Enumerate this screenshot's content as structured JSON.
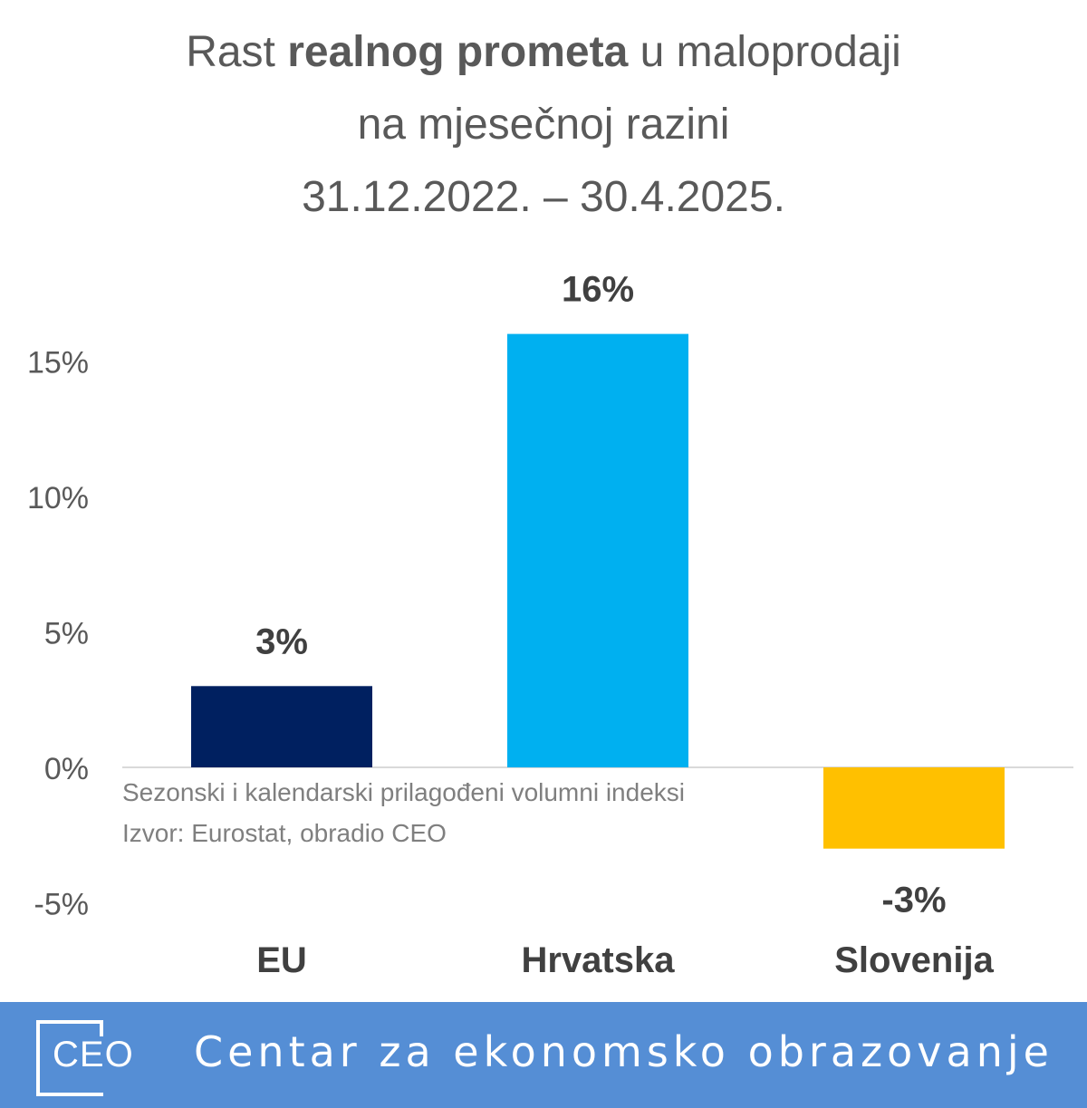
{
  "title": {
    "part1": "Rast ",
    "bold": "realnog prometa",
    "part2": " u maloprodaji",
    "line2": "na mjesečnoj razini",
    "line3": "31.12.2022. – 30.4.2025."
  },
  "notes": {
    "line1": "Sezonski i kalendarski prilagođeni volumni indeksi",
    "line2": "Izvor: Eurostat, obradio CEO"
  },
  "chart_data": {
    "type": "bar",
    "categories": [
      "EU",
      "Hrvatska",
      "Slovenija"
    ],
    "values": [
      3,
      16,
      -3
    ],
    "data_labels": [
      "3%",
      "16%",
      "-3%"
    ],
    "colors": [
      "#002060",
      "#00b0f0",
      "#ffc000"
    ],
    "ylim": [
      -5,
      15
    ],
    "yticks": [
      15,
      10,
      5,
      0,
      -5
    ],
    "ytick_labels": [
      "15%",
      "10%",
      "5%",
      "0%",
      "-5%"
    ],
    "grid": false,
    "legend": "none"
  },
  "footer": {
    "logo_text": "CEO",
    "text": "Centar za ekonomsko obrazovanje",
    "background": "#558ed5"
  }
}
